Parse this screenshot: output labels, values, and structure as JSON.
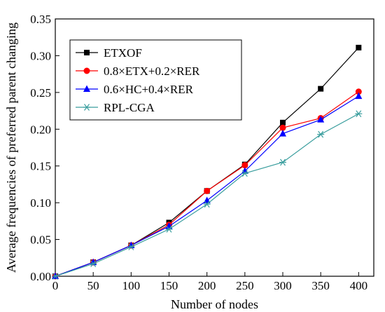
{
  "chart_data": {
    "type": "line",
    "xlabel": "Number of nodes",
    "ylabel": "Average frequencies of preferred parent changing",
    "xlim": [
      0,
      420
    ],
    "ylim": [
      0,
      0.35
    ],
    "x_ticks": [
      "0",
      "50",
      "100",
      "150",
      "200",
      "250",
      "300",
      "350",
      "400"
    ],
    "y_ticks": [
      "0.00",
      "0.05",
      "0.10",
      "0.15",
      "0.20",
      "0.25",
      "0.30",
      "0.35"
    ],
    "x": [
      0,
      50,
      100,
      150,
      200,
      250,
      300,
      350,
      400
    ],
    "legend_position": "top-left",
    "grid": false,
    "series": [
      {
        "name": "ETXOF",
        "color": "#000000",
        "marker": "square",
        "values": [
          0.0,
          0.019,
          0.042,
          0.073,
          0.116,
          0.152,
          0.209,
          0.255,
          0.311
        ]
      },
      {
        "name": "0.8×ETX+0.2×RER",
        "color": "#ff0000",
        "marker": "circle",
        "values": [
          0.0,
          0.019,
          0.042,
          0.07,
          0.116,
          0.151,
          0.202,
          0.215,
          0.251
        ]
      },
      {
        "name": "0.6×HC+0.4×RER",
        "color": "#0000ff",
        "marker": "triangle",
        "values": [
          0.0,
          0.019,
          0.042,
          0.068,
          0.103,
          0.143,
          0.194,
          0.213,
          0.245
        ]
      },
      {
        "name": "RPL-CGA",
        "color": "#3a9e9e",
        "marker": "star",
        "values": [
          0.0,
          0.017,
          0.04,
          0.064,
          0.098,
          0.14,
          0.155,
          0.193,
          0.221
        ]
      }
    ]
  }
}
